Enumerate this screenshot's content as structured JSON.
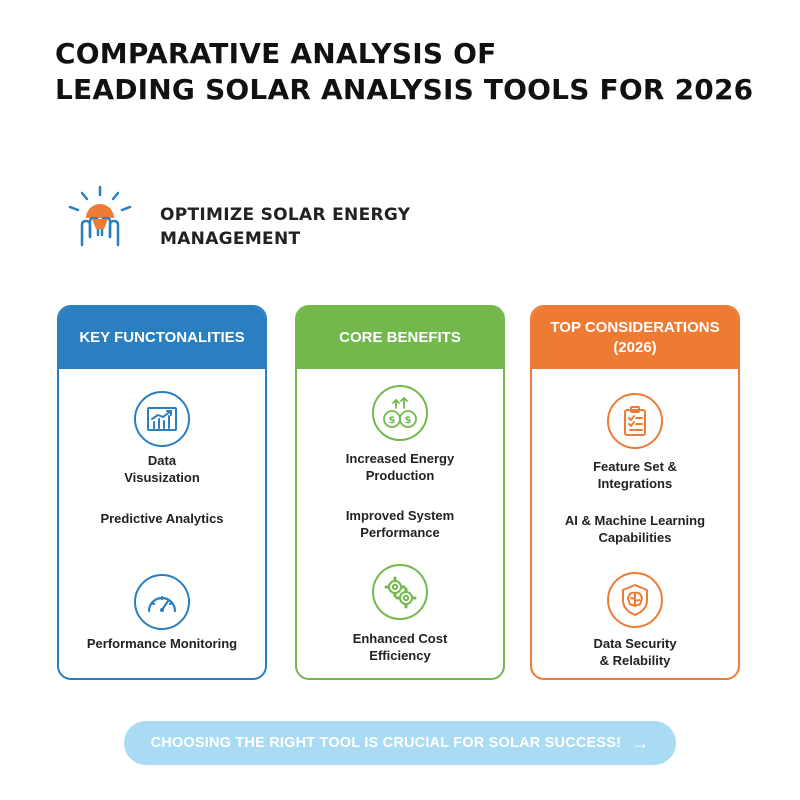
{
  "header": {
    "title_line1": "COMPARATIVE ANALYSIS OF",
    "title_line2": "LEADING SOLAR ANALYSIS TOOLS FOR 2026"
  },
  "intro": {
    "icon": "sun-hand-icon",
    "subtitle_line1": "OPTIMIZE SOLAR ENERGY",
    "subtitle_line2": "MANAGEMENT"
  },
  "colors": {
    "blue": "#2a7fc1",
    "green": "#72b84b",
    "orange": "#ee7b34",
    "cta": "#a9dcf4"
  },
  "columns": [
    {
      "header": "KEY FUNCTONALITIES",
      "items": [
        {
          "icon": "chart-growth-icon",
          "line1": "Data",
          "line2": "Visusization"
        },
        {
          "line1": "Predictive Analytics"
        },
        {
          "icon": "gauge-icon",
          "line1": "Performance Monitoring"
        }
      ]
    },
    {
      "header": "CORE BENEFITS",
      "items": [
        {
          "icon": "money-growth-icon",
          "line1": "Increased Energy",
          "line2": "Production"
        },
        {
          "line1": "Improved System",
          "line2": "Performance"
        },
        {
          "icon": "gears-icon",
          "line1": "Enhanced Cost",
          "line2": "Efficiency"
        }
      ]
    },
    {
      "header_line1": "TOP CONSIDERATIONS",
      "header_line2": "(2026)",
      "items": [
        {
          "icon": "checklist-icon",
          "line1": "Feature Set &",
          "line2": "Integrations"
        },
        {
          "line1": "AI & Machine Learning",
          "line2": "Capabilities"
        },
        {
          "icon": "shield-brain-icon",
          "line1": "Data Security",
          "line2": "& Relability"
        }
      ]
    }
  ],
  "cta": {
    "label": "CHOOSING THE RIGHT TOOL IS CRUCIAL FOR SOLAR SUCCESS!",
    "icon": "arrow-right-icon"
  }
}
